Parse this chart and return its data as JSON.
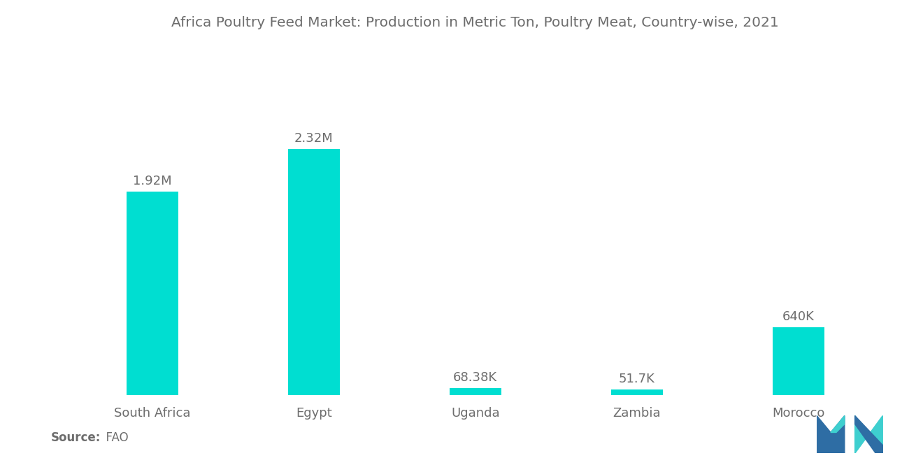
{
  "title": "Africa Poultry Feed Market: Production in Metric Ton, Poultry Meat, Country-wise, 2021",
  "categories": [
    "South Africa",
    "Egypt",
    "Uganda",
    "Zambia",
    "Morocco"
  ],
  "values": [
    1920000,
    2320000,
    68380,
    51700,
    640000
  ],
  "labels": [
    "1.92M",
    "2.32M",
    "68.38K",
    "51.7K",
    "640K"
  ],
  "bar_color": "#00DED1",
  "background_color": "#ffffff",
  "source_bold": "Source:",
  "source_light": "  FAO",
  "title_fontsize": 14.5,
  "label_fontsize": 13,
  "tick_fontsize": 13,
  "source_fontsize": 12,
  "text_color": "#6d6d6d",
  "bar_width": 0.32,
  "ylim_factor": 1.38,
  "logo_blue": "#2E6DA4",
  "logo_teal": "#3ECFCF"
}
